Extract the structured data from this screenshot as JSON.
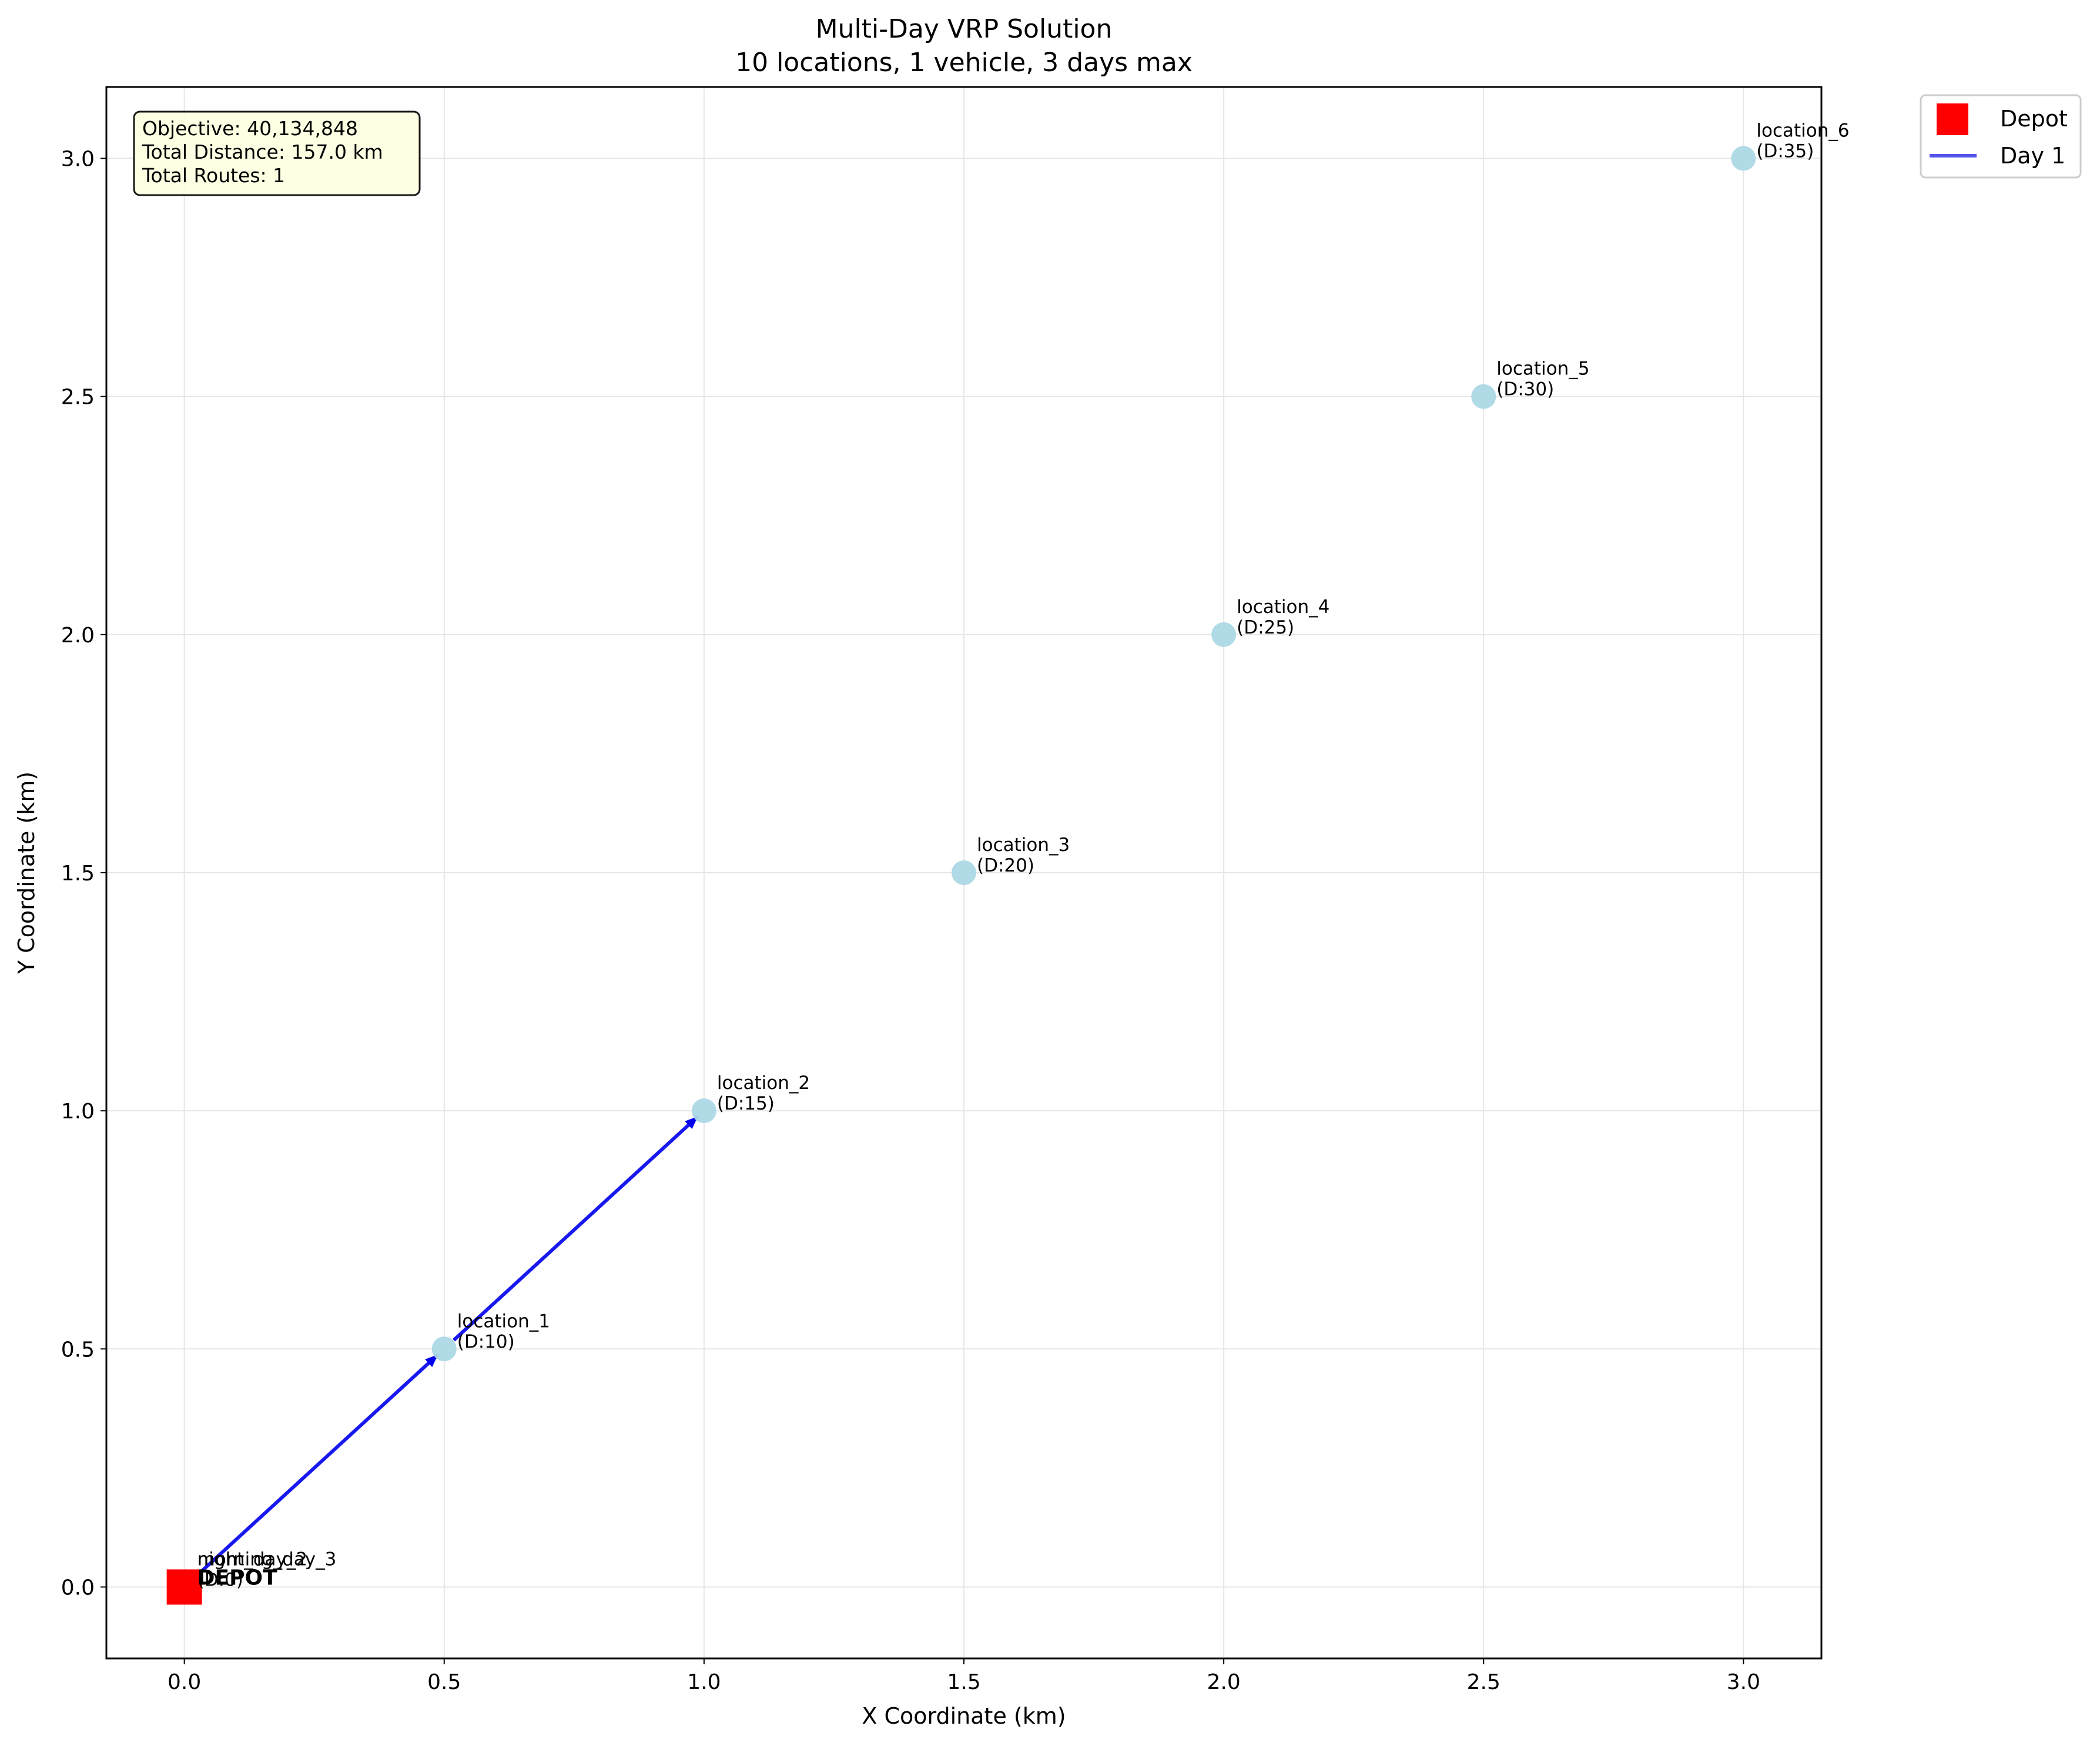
{
  "chart_data": {
    "type": "scatter",
    "title_lines": [
      "Multi-Day VRP Solution",
      "10 locations, 1 vehicle, 3 days max"
    ],
    "xlabel": "X Coordinate (km)",
    "ylabel": "Y Coordinate (km)",
    "xlim": [
      -0.15,
      3.15
    ],
    "ylim": [
      -0.15,
      3.15
    ],
    "xticks": [
      0.0,
      0.5,
      1.0,
      1.5,
      2.0,
      2.5,
      3.0
    ],
    "xtick_labels": [
      "0.0",
      "0.5",
      "1.0",
      "1.5",
      "2.0",
      "2.5",
      "3.0"
    ],
    "yticks": [
      0.0,
      0.5,
      1.0,
      1.5,
      2.0,
      2.5,
      3.0
    ],
    "ytick_labels": [
      "0.0",
      "0.5",
      "1.0",
      "1.5",
      "2.0",
      "2.5",
      "3.0"
    ],
    "grid": true,
    "locations": [
      {
        "name": "location_1",
        "demand": "(D:10)",
        "x": 0.5,
        "y": 0.5
      },
      {
        "name": "location_2",
        "demand": "(D:15)",
        "x": 1.0,
        "y": 1.0
      },
      {
        "name": "location_3",
        "demand": "(D:20)",
        "x": 1.5,
        "y": 1.5
      },
      {
        "name": "location_4",
        "demand": "(D:25)",
        "x": 2.0,
        "y": 2.0
      },
      {
        "name": "location_5",
        "demand": "(D:30)",
        "x": 2.5,
        "y": 2.5
      },
      {
        "name": "location_6",
        "demand": "(D:35)",
        "x": 3.0,
        "y": 3.0
      }
    ],
    "depot": {
      "label": "DEPOT",
      "x": 0.0,
      "y": 0.0
    },
    "overlapping_depot_labels": [
      "night_day_2",
      "morning_day_3",
      "(D:0)",
      "DEPOT"
    ],
    "routes": [
      {
        "name": "Day 1",
        "color": "#0000ee",
        "path": [
          [
            0.0,
            0.0
          ],
          [
            0.5,
            0.5
          ],
          [
            1.0,
            1.0
          ]
        ]
      }
    ],
    "legend": [
      {
        "label": "Depot",
        "marker": "square",
        "color": "#ff0000"
      },
      {
        "label": "Day 1",
        "marker": "line",
        "color": "#5555ee"
      }
    ],
    "legend_position": "outside-top-right",
    "info_box": [
      "Objective: 40,134,848",
      "Total Distance: 157.0 km",
      "Total Routes: 1"
    ],
    "colors": {
      "location": "#add8e6",
      "depot": "#ff0000",
      "route": "#0000ee",
      "info_bg": "#ffffe0",
      "grid": "#e6e6e6"
    }
  }
}
